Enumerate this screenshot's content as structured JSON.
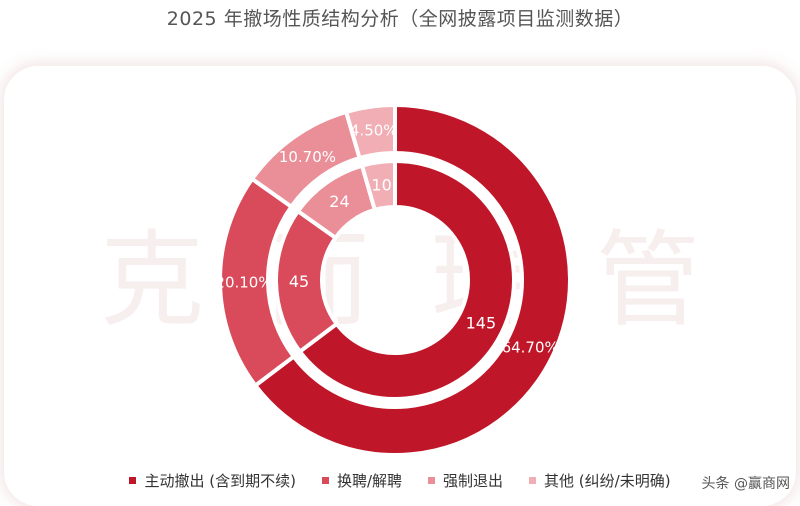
{
  "header": {
    "title": "2025 年撤场性质结构分析（全网披露项目监测数据）"
  },
  "watermark": {
    "chars": [
      "克",
      "而",
      "瑞",
      "管"
    ]
  },
  "chart_data": {
    "type": "donut",
    "title": "2025 年撤场性质结构分析（全网披露项目监测数据）",
    "categories": [
      "主动撤出 (含到期不续)",
      "换聘/解聘",
      "强制退出",
      "其他 (纠纷/未明确)"
    ],
    "colors": [
      "#c01629",
      "#d94a5a",
      "#ea8e98",
      "#f1aeb5"
    ],
    "series": [
      {
        "ring": "inner",
        "values": [
          145,
          45,
          24,
          10
        ],
        "labels": [
          "145",
          "45",
          "24",
          "10"
        ]
      },
      {
        "ring": "outer",
        "values": [
          64.7,
          20.1,
          10.7,
          4.5
        ],
        "labels": [
          "64.70%",
          "20.10%",
          "10.70%",
          "4.50%"
        ]
      }
    ],
    "legend": "bottom"
  },
  "legend": {
    "items": [
      {
        "label": "主动撤出 (含到期不续)",
        "color": "#c01629"
      },
      {
        "label": "换聘/解聘",
        "color": "#d94a5a"
      },
      {
        "label": "强制退出",
        "color": "#ea8e98"
      },
      {
        "label": "其他 (纠纷/未明确)",
        "color": "#f1aeb5"
      }
    ]
  },
  "credit": {
    "text": "头条 @赢商网"
  }
}
